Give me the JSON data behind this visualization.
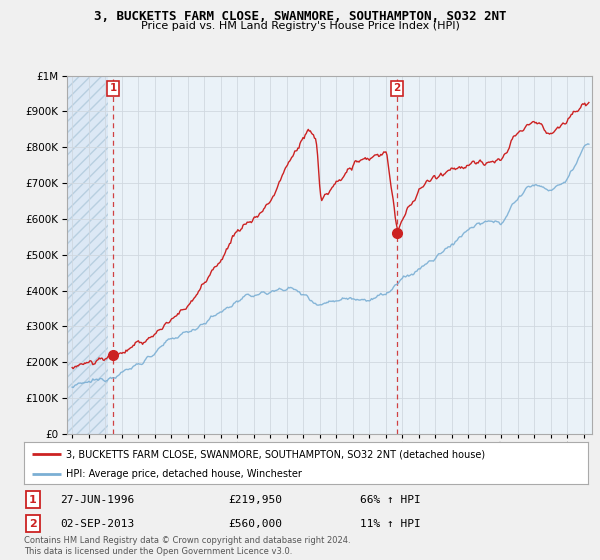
{
  "title": "3, BUCKETTS FARM CLOSE, SWANMORE, SOUTHAMPTON, SO32 2NT",
  "subtitle": "Price paid vs. HM Land Registry's House Price Index (HPI)",
  "legend_line1": "3, BUCKETTS FARM CLOSE, SWANMORE, SOUTHAMPTON, SO32 2NT (detached house)",
  "legend_line2": "HPI: Average price, detached house, Winchester",
  "annotation1_label": "1",
  "annotation1_date": "27-JUN-1996",
  "annotation1_price": "£219,950",
  "annotation1_hpi": "66% ↑ HPI",
  "annotation2_label": "2",
  "annotation2_date": "02-SEP-2013",
  "annotation2_price": "£560,000",
  "annotation2_hpi": "11% ↑ HPI",
  "footer": "Contains HM Land Registry data © Crown copyright and database right 2024.\nThis data is licensed under the Open Government Licence v3.0.",
  "ylim": [
    0,
    1000000
  ],
  "yticks": [
    0,
    100000,
    200000,
    300000,
    400000,
    500000,
    600000,
    700000,
    800000,
    900000,
    1000000
  ],
  "xlim_start": 1993.7,
  "xlim_end": 2025.5,
  "sale1_x": 1996.49,
  "sale1_y": 219950,
  "sale2_x": 2013.67,
  "sale2_y": 560000,
  "hpi_color": "#7bafd4",
  "price_color": "#cc2222",
  "vline_color": "#cc2222",
  "grid_color": "#d0d8e0",
  "bg_hatch_color": "#dce8f0",
  "plot_bg_color": "#eaf2f8",
  "figure_bg_color": "#f0f0f0"
}
